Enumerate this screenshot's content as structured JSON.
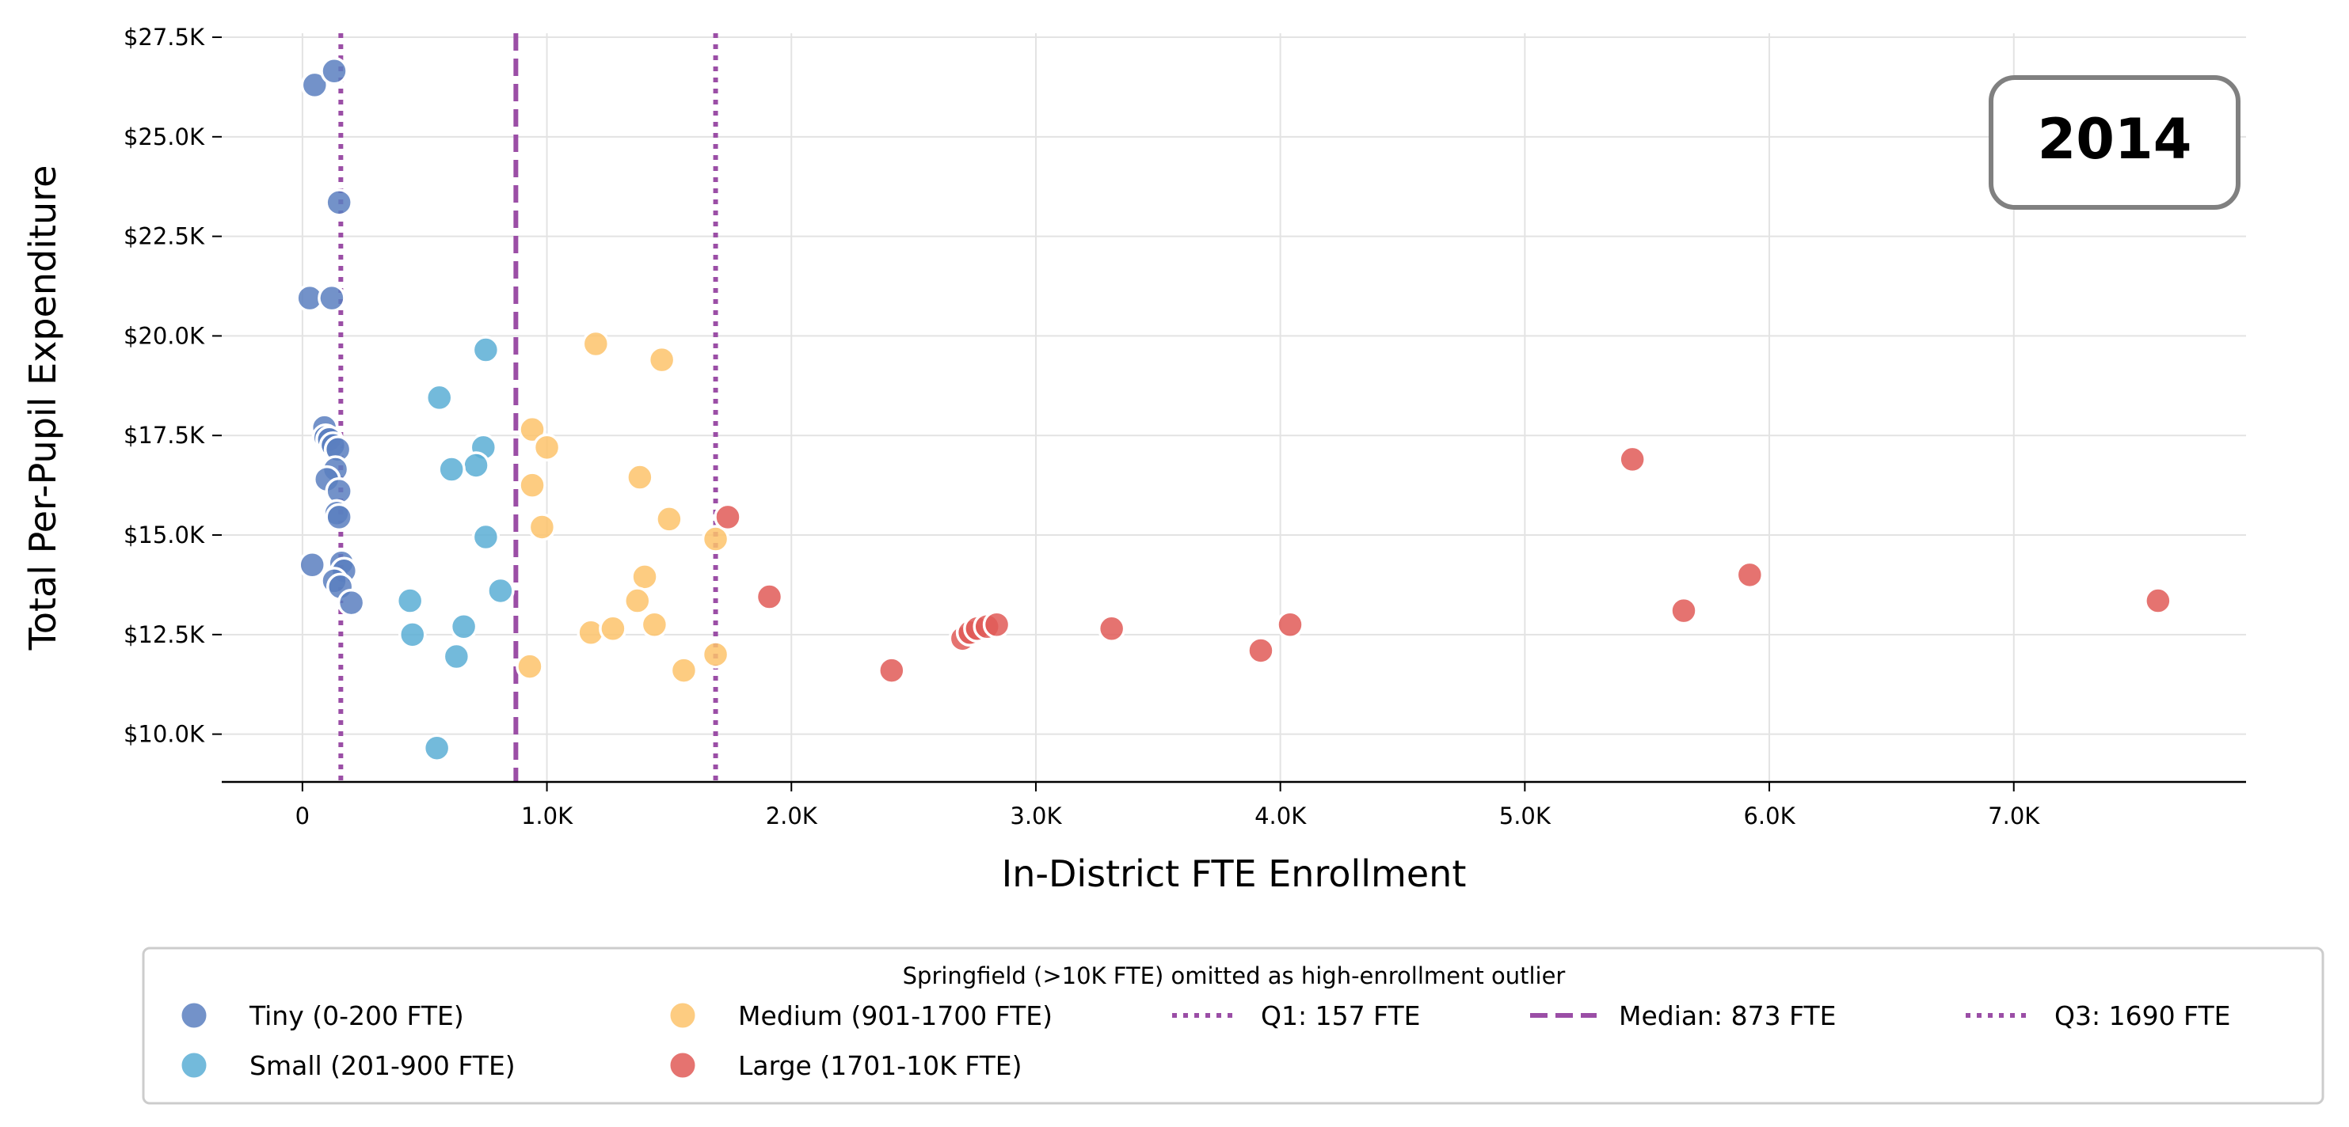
{
  "chart_data": {
    "type": "scatter",
    "xlabel": "In-District FTE Enrollment",
    "ylabel": "Total Per-Pupil Expenditure",
    "xlim": [
      -330,
      7950
    ],
    "ylim": [
      8800,
      27600
    ],
    "x_ticks": [
      0,
      1000,
      2000,
      3000,
      4000,
      5000,
      6000,
      7000
    ],
    "x_tick_labels": [
      "0",
      "1.0K",
      "2.0K",
      "3.0K",
      "4.0K",
      "5.0K",
      "6.0K",
      "7.0K"
    ],
    "y_ticks": [
      10000,
      12500,
      15000,
      17500,
      20000,
      22500,
      25000,
      27500
    ],
    "y_tick_labels": [
      "$10.0K",
      "$12.5K",
      "$15.0K",
      "$17.5K",
      "$20.0K",
      "$22.5K",
      "$25.0K",
      "$27.5K"
    ],
    "grid": true,
    "annotation": "2014",
    "legend_title": "Springfield (>10K FTE) omitted as high-enrollment outlier",
    "legend_placement": "bottom-center",
    "series": [
      {
        "name": "Tiny (0-200 FTE)",
        "color": "#5b7fbf",
        "points": [
          [
            50,
            26300
          ],
          [
            130,
            26650
          ],
          [
            150,
            23350
          ],
          [
            30,
            20950
          ],
          [
            120,
            20950
          ],
          [
            90,
            17700
          ],
          [
            95,
            17450
          ],
          [
            110,
            17400
          ],
          [
            125,
            17250
          ],
          [
            145,
            17150
          ],
          [
            135,
            16650
          ],
          [
            100,
            16400
          ],
          [
            150,
            16100
          ],
          [
            140,
            15550
          ],
          [
            150,
            15450
          ],
          [
            40,
            14250
          ],
          [
            160,
            14300
          ],
          [
            170,
            14100
          ],
          [
            130,
            13850
          ],
          [
            155,
            13700
          ],
          [
            200,
            13300
          ]
        ]
      },
      {
        "name": "Small (201-900 FTE)",
        "color": "#5aaed5",
        "points": [
          [
            750,
            19650
          ],
          [
            560,
            18450
          ],
          [
            740,
            17200
          ],
          [
            710,
            16750
          ],
          [
            610,
            16650
          ],
          [
            750,
            14950
          ],
          [
            810,
            13600
          ],
          [
            440,
            13350
          ],
          [
            660,
            12700
          ],
          [
            450,
            12500
          ],
          [
            630,
            11950
          ],
          [
            550,
            9650
          ]
        ]
      },
      {
        "name": "Medium (901-1700 FTE)",
        "color": "#fdc36b",
        "points": [
          [
            1200,
            19800
          ],
          [
            1470,
            19400
          ],
          [
            940,
            17650
          ],
          [
            1000,
            17200
          ],
          [
            1380,
            16450
          ],
          [
            940,
            16250
          ],
          [
            980,
            15200
          ],
          [
            1500,
            15400
          ],
          [
            1690,
            14900
          ],
          [
            1400,
            13950
          ],
          [
            1370,
            13350
          ],
          [
            1180,
            12550
          ],
          [
            1270,
            12650
          ],
          [
            1440,
            12750
          ],
          [
            1690,
            12000
          ],
          [
            1560,
            11600
          ],
          [
            930,
            11700
          ]
        ]
      },
      {
        "name": "Large (1701-10K FTE)",
        "color": "#e05a57",
        "points": [
          [
            1740,
            15450
          ],
          [
            1910,
            13450
          ],
          [
            2410,
            11600
          ],
          [
            2700,
            12400
          ],
          [
            2730,
            12550
          ],
          [
            2760,
            12650
          ],
          [
            2800,
            12700
          ],
          [
            2840,
            12750
          ],
          [
            3310,
            12650
          ],
          [
            3920,
            12100
          ],
          [
            4040,
            12750
          ],
          [
            5440,
            16900
          ],
          [
            5650,
            13100
          ],
          [
            5920,
            14000
          ],
          [
            7590,
            13350
          ]
        ]
      }
    ],
    "reference_lines": [
      {
        "name": "Q1: 157 FTE",
        "x": 157,
        "style": "dotted",
        "color": "#9b4ea6"
      },
      {
        "name": "Median: 873 FTE",
        "x": 873,
        "style": "dashed",
        "color": "#9b4ea6"
      },
      {
        "name": "Q3: 1690 FTE",
        "x": 1690,
        "style": "dotted",
        "color": "#9b4ea6"
      }
    ]
  }
}
